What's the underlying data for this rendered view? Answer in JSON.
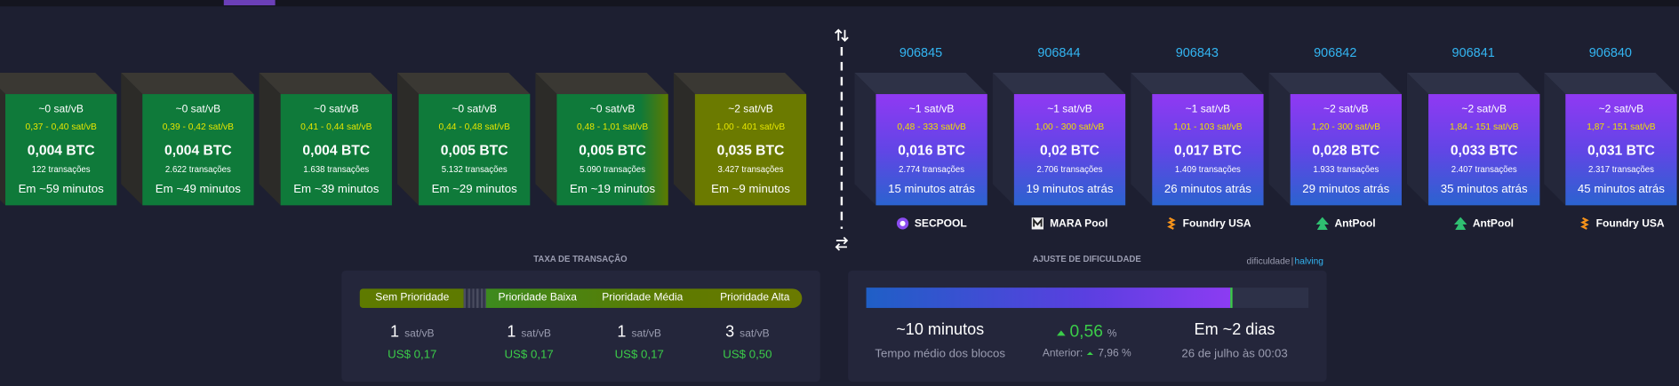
{
  "mempool_blocks": [
    {
      "fee": "~0 sat/vB",
      "fee_range": "0,37 - 0,40 sat/vB",
      "size": "0,004 BTC",
      "tx_count": "122 transações",
      "eta": "Em ~59 minutos"
    },
    {
      "fee": "~0 sat/vB",
      "fee_range": "0,39 - 0,42 sat/vB",
      "size": "0,004 BTC",
      "tx_count": "2.622 transações",
      "eta": "Em ~49 minutos"
    },
    {
      "fee": "~0 sat/vB",
      "fee_range": "0,41 - 0,44 sat/vB",
      "size": "0,004 BTC",
      "tx_count": "1.638 transações",
      "eta": "Em ~39 minutos"
    },
    {
      "fee": "~0 sat/vB",
      "fee_range": "0,44 - 0,48 sat/vB",
      "size": "0,005 BTC",
      "tx_count": "5.132 transações",
      "eta": "Em ~29 minutos"
    },
    {
      "fee": "~0 sat/vB",
      "fee_range": "0,48 - 1,01 sat/vB",
      "size": "0,005 BTC",
      "tx_count": "5.090 transações",
      "eta": "Em ~19 minutos"
    },
    {
      "fee": "~2 sat/vB",
      "fee_range": "1,00 - 401 sat/vB",
      "size": "0,035 BTC",
      "tx_count": "3.427 transações",
      "eta": "Em ~9 minutos"
    }
  ],
  "blocks": [
    {
      "height": "906845",
      "fee": "~1 sat/vB",
      "fee_range": "0,48 - 333 sat/vB",
      "size": "0,016 BTC",
      "tx_count": "2.774 transações",
      "age": "15 minutos atrás",
      "pool": "SECPOOL"
    },
    {
      "height": "906844",
      "fee": "~1 sat/vB",
      "fee_range": "1,00 - 300 sat/vB",
      "size": "0,02 BTC",
      "tx_count": "2.706 transações",
      "age": "19 minutos atrás",
      "pool": "MARA Pool"
    },
    {
      "height": "906843",
      "fee": "~1 sat/vB",
      "fee_range": "1,01 - 103 sat/vB",
      "size": "0,017 BTC",
      "tx_count": "1.409 transações",
      "age": "26 minutos atrás",
      "pool": "Foundry USA"
    },
    {
      "height": "906842",
      "fee": "~2 sat/vB",
      "fee_range": "1,20 - 300 sat/vB",
      "size": "0,028 BTC",
      "tx_count": "1.933 transações",
      "age": "29 minutos atrás",
      "pool": "AntPool"
    },
    {
      "height": "906841",
      "fee": "~2 sat/vB",
      "fee_range": "1,84 - 151 sat/vB",
      "size": "0,033 BTC",
      "tx_count": "2.407 transações",
      "age": "35 minutos atrás",
      "pool": "AntPool"
    },
    {
      "height": "906840",
      "fee": "~2 sat/vB",
      "fee_range": "1,87 - 151 sat/vB",
      "size": "0,031 BTC",
      "tx_count": "2.317 transações",
      "age": "45 minutos atrás",
      "pool": "Foundry USA"
    }
  ],
  "fees": {
    "title": "TAXA DE TRANSAÇÃO",
    "priorities": [
      "Sem Prioridade",
      "Prioridade Baixa",
      "Prioridade Média",
      "Prioridade Alta"
    ],
    "values": [
      {
        "value": "1",
        "unit": "sat/vB",
        "usd": "US$ 0,17"
      },
      {
        "value": "1",
        "unit": "sat/vB",
        "usd": "US$ 0,17"
      },
      {
        "value": "1",
        "unit": "sat/vB",
        "usd": "US$ 0,17"
      },
      {
        "value": "3",
        "unit": "sat/vB",
        "usd": "US$ 0,50"
      }
    ]
  },
  "difficulty": {
    "title": "AJUSTE DE DIFICULDADE",
    "links": [
      "dificuldade",
      "|",
      "halving"
    ],
    "avg_time": "~10 minutos",
    "avg_time_label": "Tempo médio dos blocos",
    "change": "0,56",
    "change_unit": "%",
    "previous_label": "Anterior:",
    "previous": "7,96 %",
    "eta": "Em ~2 dias",
    "eta_date": "26 de julho às 00:03"
  }
}
